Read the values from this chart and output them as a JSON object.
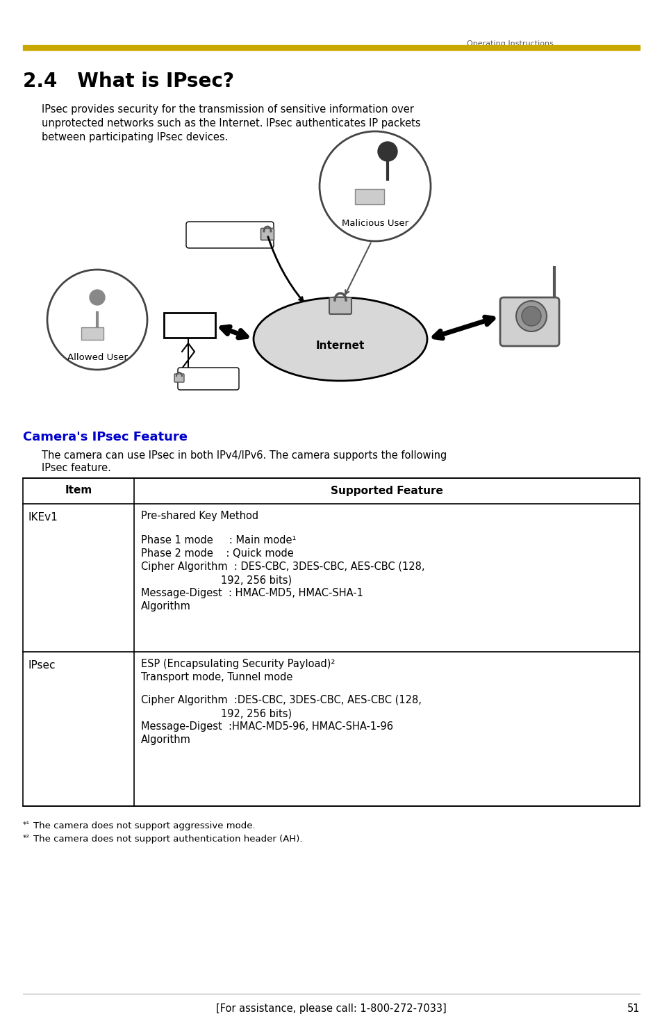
{
  "page_bg": "#ffffff",
  "header_text": "Operating Instructions",
  "header_text_color": "#555555",
  "gold_bar_color": "#C8A800",
  "title": "2.4   What is IPsec?",
  "title_color": "#000000",
  "body_line1": "IPsec provides security for the transmission of sensitive information over",
  "body_line2": "unprotected networks such as the Internet. IPsec authenticates IP packets",
  "body_line3": "between participating IPsec devices.",
  "section_header": "Camera's IPsec Feature",
  "section_header_color": "#0000CC",
  "section_body_line1": "The camera can use IPsec in both IPv4/IPv6. The camera supports the following",
  "section_body_line2": "IPsec feature.",
  "table_header_item": "Item",
  "table_header_feature": "Supported Feature",
  "footnote1_super": "*1",
  "footnote1_text": "  The camera does not support aggressive mode.",
  "footnote2_super": "*2",
  "footnote2_text": "  The camera does not support authentication header (AH).",
  "footer_text": "[For assistance, please call: 1-800-272-7033]",
  "footer_page": "51"
}
